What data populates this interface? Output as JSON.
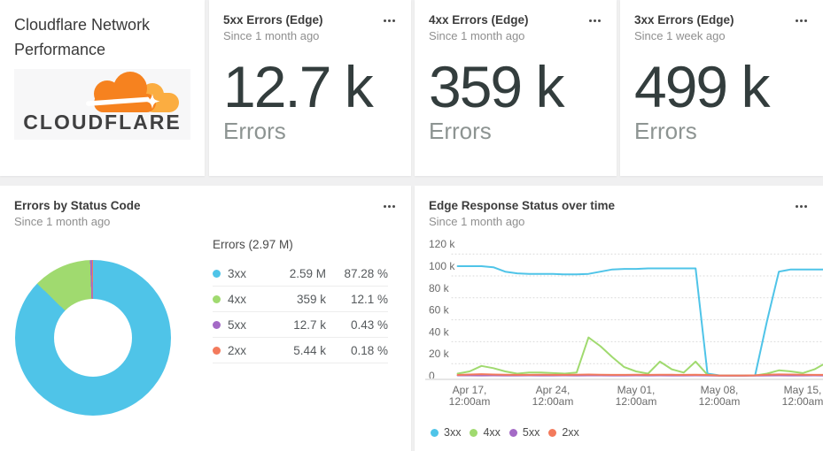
{
  "app": {
    "background_color": "#f0f0f1"
  },
  "header_card": {
    "title": "Cloudflare Network Performance",
    "logo_text": "CLOUDFLARE",
    "logo_colors": {
      "cloud_orange": "#F6821F",
      "cloud_light_orange": "#FBAD41",
      "text": "#404041"
    }
  },
  "metric_cards": [
    {
      "title": "5xx Errors (Edge)",
      "subtitle": "Since 1 month ago",
      "value": "12.7 k",
      "unit": "Errors"
    },
    {
      "title": "4xx Errors (Edge)",
      "subtitle": "Since 1 month ago",
      "value": "359 k",
      "unit": "Errors"
    },
    {
      "title": "3xx Errors (Edge)",
      "subtitle": "Since 1 week ago",
      "value": "499 k",
      "unit": "Errors"
    }
  ],
  "chart_data": [
    {
      "type": "pie",
      "donut": true,
      "title": "Errors by Status Code",
      "subtitle": "Since 1 month ago",
      "legend_header": "Errors (2.97 M)",
      "legend_position": "right",
      "slices": [
        {
          "label": "3xx",
          "value_label": "2.59 M",
          "pct": 87.28,
          "pct_label": "87.28 %",
          "color": "#4FC4E8"
        },
        {
          "label": "4xx",
          "value_label": "359 k",
          "pct": 12.1,
          "pct_label": "12.1 %",
          "color": "#A0DA6F"
        },
        {
          "label": "5xx",
          "value_label": "12.7 k",
          "pct": 0.43,
          "pct_label": "0.43 %",
          "color": "#A46AC6"
        },
        {
          "label": "2xx",
          "value_label": "5.44 k",
          "pct": 0.18,
          "pct_label": "0.18 %",
          "color": "#F37A5C"
        }
      ]
    },
    {
      "type": "line",
      "title": "Edge Response Status over time",
      "subtitle": "Since 1 month ago",
      "grid": "dotted",
      "value_unit": "k",
      "ylim_k": [
        0,
        120
      ],
      "yticks": [
        {
          "label": "120 k",
          "value": 120
        },
        {
          "label": "100 k",
          "value": 100
        },
        {
          "label": "80 k",
          "value": 80
        },
        {
          "label": "60 k",
          "value": 60
        },
        {
          "label": "40 k",
          "value": 40
        },
        {
          "label": "20 k",
          "value": 20
        },
        {
          "label": "0",
          "value": 0
        }
      ],
      "xticks": [
        {
          "line1": "Apr 17,",
          "line2": "12:00am"
        },
        {
          "line1": "Apr 24,",
          "line2": "12:00am"
        },
        {
          "line1": "May 01,",
          "line2": "12:00am"
        },
        {
          "line1": "May 08,",
          "line2": "12:00am"
        },
        {
          "line1": "May 15,",
          "line2": "12:00am"
        }
      ],
      "legend_position": "bottom",
      "series": [
        {
          "name": "3xx",
          "color": "#4FC4E8",
          "values_k": [
            100,
            100,
            100,
            99,
            95,
            93.5,
            93,
            93,
            93,
            92.5,
            92.5,
            93,
            95,
            97,
            97.5,
            97.5,
            98,
            98,
            98,
            98,
            98,
            2,
            0.4,
            0.3,
            0.3,
            0.5,
            50,
            95,
            97,
            97,
            97,
            97
          ]
        },
        {
          "name": "4xx",
          "color": "#A0DA6F",
          "values_k": [
            2,
            4,
            9,
            7,
            4,
            2,
            3,
            3,
            2.5,
            2,
            3,
            35,
            27,
            17,
            8,
            4,
            2,
            13,
            6,
            3,
            13,
            1,
            0.3,
            0.2,
            0.2,
            0.3,
            2,
            5,
            4,
            2.5,
            6,
            12
          ]
        },
        {
          "name": "5xx",
          "color": "#A46AC6",
          "values_k": [
            0.4,
            0.4,
            0.3,
            0.4,
            0.3,
            0.3,
            0.4,
            0.3,
            0.3,
            0.4,
            0.3,
            0.4,
            0.4,
            0.3,
            0.3,
            0.4,
            0.3,
            0.4,
            0.3,
            0.3,
            0.4,
            0.3,
            0.1,
            0.1,
            0.1,
            0.2,
            0.3,
            0.4,
            0.3,
            0.3,
            0.4,
            0.3
          ]
        },
        {
          "name": "2xx",
          "color": "#F37A5C",
          "values_k": [
            0.8,
            1.2,
            1.5,
            1.2,
            1,
            0.9,
            0.9,
            1,
            0.9,
            0.9,
            1,
            1.2,
            1,
            0.9,
            0.9,
            1,
            0.9,
            1,
            1,
            0.9,
            1,
            0.8,
            0.3,
            0.3,
            0.3,
            0.5,
            1,
            1.3,
            1.2,
            1,
            0.9,
            1
          ]
        }
      ]
    }
  ]
}
